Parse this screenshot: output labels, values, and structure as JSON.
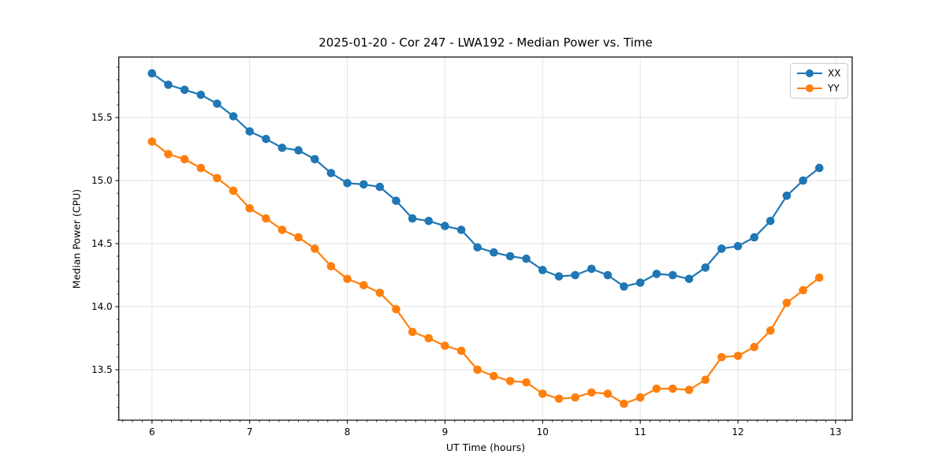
{
  "chart_data": {
    "type": "line",
    "title": "2025-01-20 - Cor 247 - LWA192 - Median Power vs. Time",
    "xlabel": "UT Time (hours)",
    "ylabel": "Median Power (CPU)",
    "xlim": [
      5.66,
      13.17
    ],
    "ylim": [
      13.1,
      15.98
    ],
    "xticks": [
      6,
      7,
      8,
      9,
      10,
      11,
      12,
      13
    ],
    "yticks": [
      13.5,
      14.0,
      14.5,
      15.0,
      15.5
    ],
    "minor_tick_step_x": 0.1,
    "minor_tick_step_y": 0.1,
    "grid": true,
    "grid_color": "#e2e2e2",
    "legend_position": "upper right",
    "x": [
      6.0,
      6.167,
      6.333,
      6.5,
      6.667,
      6.833,
      7.0,
      7.167,
      7.333,
      7.5,
      7.667,
      7.833,
      8.0,
      8.167,
      8.333,
      8.5,
      8.667,
      8.833,
      9.0,
      9.167,
      9.333,
      9.5,
      9.667,
      9.833,
      10.0,
      10.167,
      10.333,
      10.5,
      10.667,
      10.833,
      11.0,
      11.167,
      11.333,
      11.5,
      11.667,
      11.833,
      12.0,
      12.167,
      12.333,
      12.5,
      12.667,
      12.833
    ],
    "series": [
      {
        "name": "XX",
        "color": "#1f77b4",
        "values": [
          15.85,
          15.76,
          15.72,
          15.68,
          15.61,
          15.51,
          15.39,
          15.33,
          15.26,
          15.24,
          15.17,
          15.06,
          14.98,
          14.97,
          14.95,
          14.84,
          14.7,
          14.68,
          14.64,
          14.61,
          14.47,
          14.43,
          14.4,
          14.38,
          14.29,
          14.24,
          14.25,
          14.3,
          14.25,
          14.16,
          14.19,
          14.26,
          14.25,
          14.22,
          14.31,
          14.46,
          14.48,
          14.55,
          14.68,
          14.88,
          15.0,
          15.1
        ]
      },
      {
        "name": "YY",
        "color": "#ff7f0e",
        "values": [
          15.31,
          15.21,
          15.17,
          15.1,
          15.02,
          14.92,
          14.78,
          14.7,
          14.61,
          14.55,
          14.46,
          14.32,
          14.22,
          14.17,
          14.11,
          13.98,
          13.8,
          13.75,
          13.69,
          13.65,
          13.5,
          13.45,
          13.41,
          13.4,
          13.31,
          13.27,
          13.28,
          13.32,
          13.31,
          13.23,
          13.28,
          13.35,
          13.35,
          13.34,
          13.42,
          13.6,
          13.61,
          13.68,
          13.81,
          14.03,
          14.13,
          14.23
        ]
      }
    ]
  }
}
